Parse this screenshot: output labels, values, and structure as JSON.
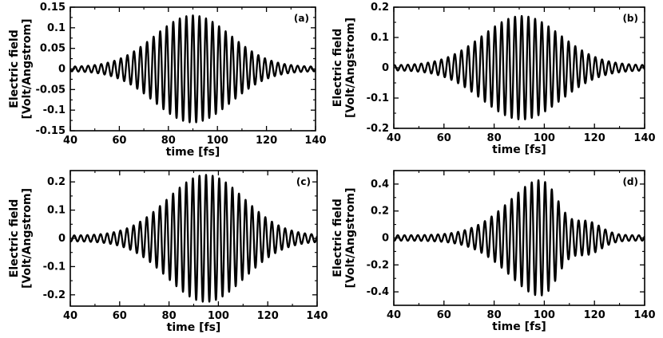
{
  "chart_data": [
    {
      "id": "a",
      "type": "line",
      "panel_label": "(a)",
      "xlabel": "time [fs]",
      "ylabel_line1": "Electric field",
      "ylabel_line2": "[Volt/Angstrom]",
      "xlim": [
        40,
        140
      ],
      "ylim": [
        -0.15,
        0.15
      ],
      "xticks": [
        40,
        60,
        80,
        100,
        120,
        140
      ],
      "yticks": [
        -0.15,
        -0.1,
        -0.05,
        0,
        0.05,
        0.1,
        0.15
      ],
      "ytick_labels": [
        "-0.15",
        "-0.1",
        "-0.05",
        "0",
        "0.05",
        "0.1",
        "0.15"
      ],
      "series": [
        {
          "name": "field",
          "peak_amplitude": 0.125,
          "center_fs": 90,
          "width_fs": 22,
          "period_fs": 2.67,
          "background": 0.005
        }
      ]
    },
    {
      "id": "b",
      "type": "line",
      "panel_label": "(b)",
      "xlabel": "time [fs]",
      "ylabel_line1": "Electric field",
      "ylabel_line2": "[Volt/Angstrom]",
      "xlim": [
        40,
        140
      ],
      "ylim": [
        -0.2,
        0.2
      ],
      "xticks": [
        40,
        60,
        80,
        100,
        120,
        140
      ],
      "yticks": [
        -0.2,
        -0.1,
        0,
        0.1,
        0.2
      ],
      "ytick_labels": [
        "-0.2",
        "-0.1",
        "0",
        "0.1",
        "0.2"
      ],
      "series": [
        {
          "name": "field",
          "peak_amplitude": 0.163,
          "center_fs": 91,
          "width_fs": 22,
          "period_fs": 2.67,
          "background": 0.008
        }
      ]
    },
    {
      "id": "c",
      "type": "line",
      "panel_label": "(c)",
      "xlabel": "time [fs]",
      "ylabel_line1": "Electric field",
      "ylabel_line2": "[Volt/Angstrom]",
      "xlim": [
        40,
        140
      ],
      "ylim": [
        -0.24,
        0.24
      ],
      "xticks": [
        40,
        60,
        80,
        100,
        120,
        140
      ],
      "yticks": [
        -0.2,
        -0.1,
        0,
        0.1,
        0.2
      ],
      "ytick_labels": [
        "-0.2",
        "-0.1",
        "0",
        "0.1",
        "0.2"
      ],
      "series": [
        {
          "name": "field",
          "peak_amplitude": 0.215,
          "center_fs": 95,
          "width_fs": 22,
          "period_fs": 2.67,
          "background": 0.01
        }
      ]
    },
    {
      "id": "d",
      "type": "line",
      "panel_label": "(d)",
      "xlabel": "time [fs]",
      "ylabel_line1": "Electric field",
      "ylabel_line2": "[Volt/Angstrom]",
      "xlim": [
        40,
        140
      ],
      "ylim": [
        -0.5,
        0.5
      ],
      "xticks": [
        40,
        60,
        80,
        100,
        120,
        140
      ],
      "yticks": [
        -0.4,
        -0.2,
        0,
        0.2,
        0.4
      ],
      "ytick_labels": [
        "-0.4",
        "-0.2",
        "0",
        "0.2",
        "0.4"
      ],
      "series": [
        {
          "name": "field",
          "peak_amplitude": 0.46,
          "center_fs": 103,
          "width_fs": 22,
          "cutoff_fs": 106,
          "fall_fs": 3,
          "tail_amplitude": 0.1,
          "tail_center_fs": 117,
          "tail_width_fs": 8,
          "period_fs": 2.67,
          "background": 0.02
        }
      ]
    }
  ]
}
